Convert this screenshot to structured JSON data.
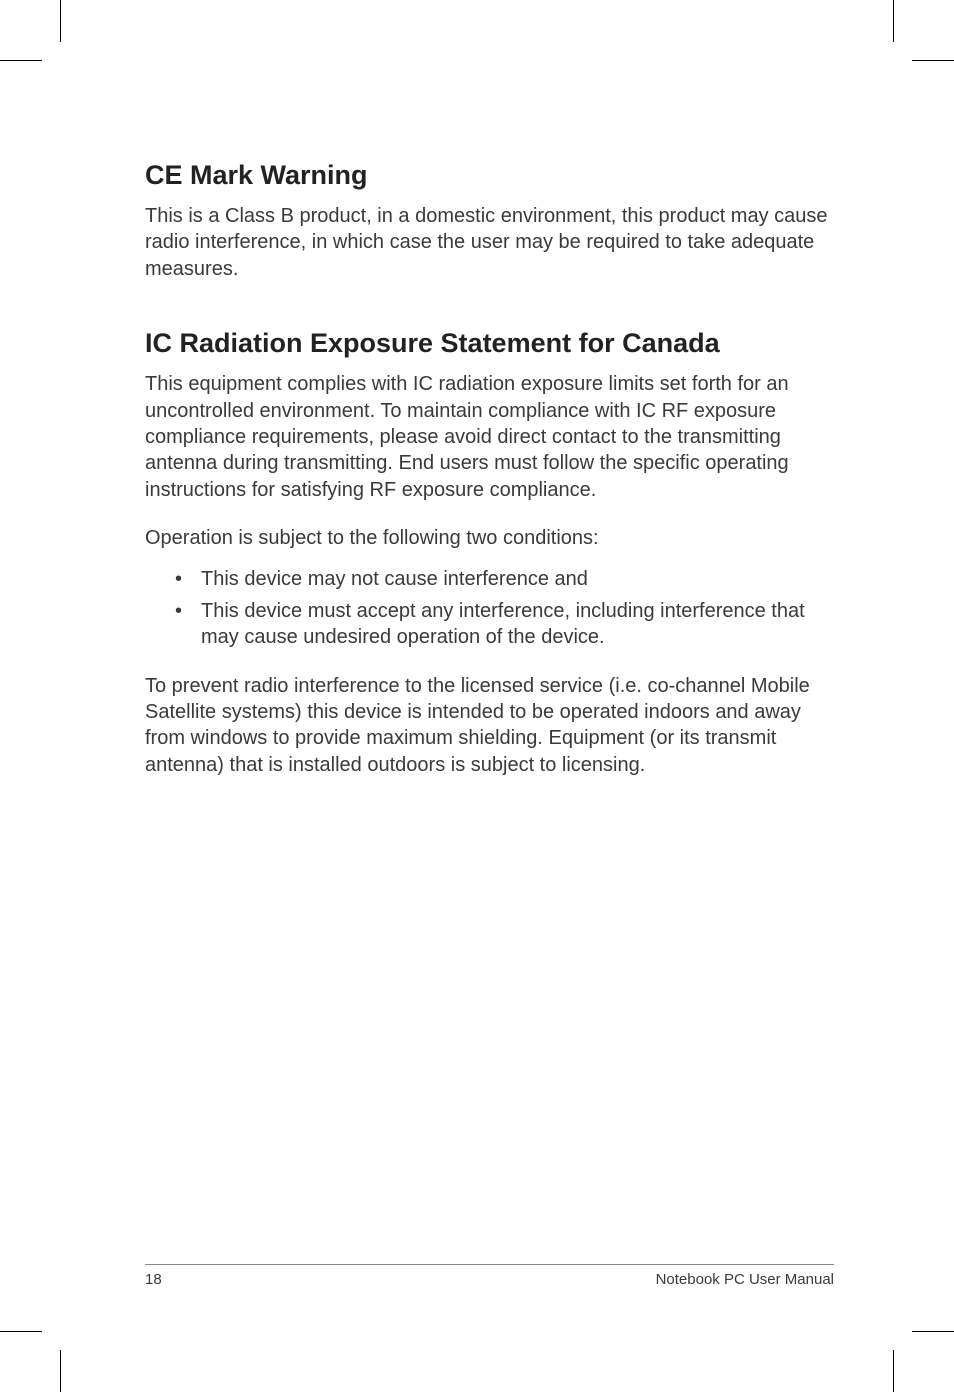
{
  "headings": {
    "ce_mark": "CE Mark Warning",
    "ic_radiation": "IC Radiation Exposure Statement for Canada"
  },
  "paragraphs": {
    "ce_mark_body": "This is a Class B product, in a domestic environment, this product may cause radio interference, in which case the user may be required to take adequate measures.",
    "ic_body_1": "This equipment complies with IC radiation exposure limits set forth for an uncontrolled environment. To maintain compliance with IC RF exposure compliance requirements, please avoid direct contact to the transmitting antenna during transmitting. End users must follow the specific operating instructions for satisfying RF exposure compliance.",
    "ic_body_2": "Operation is subject to the following two conditions:",
    "ic_body_3": "To prevent radio interference to the licensed service (i.e. co-channel Mobile Satellite systems) this device is intended to be operated indoors and away from windows to provide maximum shielding. Equipment (or its transmit antenna) that is installed outdoors is subject to licensing."
  },
  "list": {
    "item_1": "This device may not cause interference and",
    "item_2": "This device must accept any interference, including interference that  may cause undesired operation of the device."
  },
  "footer": {
    "page_number": "18",
    "doc_title": "Notebook PC User Manual"
  }
}
